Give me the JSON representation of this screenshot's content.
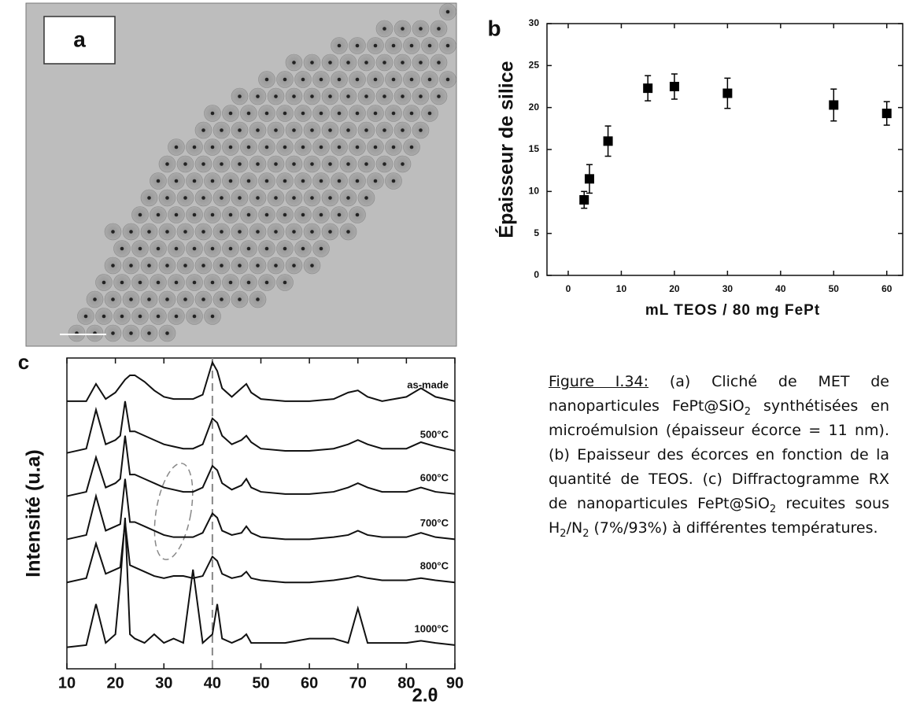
{
  "panel_a": {
    "label": "a"
  },
  "chart_data": [
    {
      "type": "scatter",
      "panel_label": "b",
      "xlabel": "mL TEOS / 80 mg FePt",
      "ylabel": "Épaisseur de silice",
      "x": [
        3,
        4,
        7.5,
        15,
        20,
        30,
        50,
        60
      ],
      "values": [
        9,
        11.5,
        16,
        22.3,
        22.5,
        21.7,
        20.3,
        19.3
      ],
      "errors": [
        1,
        1.7,
        1.8,
        1.5,
        1.5,
        1.8,
        1.9,
        1.4
      ],
      "color": "#000000",
      "xlim": [
        -4,
        63
      ],
      "ylim": [
        0,
        30
      ],
      "xticks": [
        0,
        10,
        20,
        30,
        40,
        50,
        60
      ],
      "yticks": [
        0,
        5,
        10,
        15,
        20,
        25,
        30
      ]
    },
    {
      "type": "line",
      "panel_label": "c",
      "xlabel": "2.θ",
      "ylabel": "Intensité (u.a)",
      "x": [
        10,
        14,
        16,
        18,
        20,
        21,
        22,
        23,
        24,
        26,
        28,
        30,
        32,
        34,
        36,
        38,
        40,
        41,
        42,
        44,
        46,
        47,
        48,
        50,
        55,
        60,
        65,
        68,
        70,
        72,
        75,
        80,
        83,
        86,
        90
      ],
      "series": [
        {
          "name": "as-made",
          "color": "#111111",
          "values": [
            62,
            62,
            66,
            62.5,
            64,
            65.5,
            67,
            68,
            68,
            66.5,
            64.5,
            63,
            62.5,
            62.5,
            62.5,
            63.5,
            71,
            69,
            65,
            63,
            65,
            66,
            64,
            62.5,
            62,
            62,
            62.5,
            64,
            64.5,
            63,
            62,
            63,
            65,
            63,
            62
          ]
        },
        {
          "name": "500°C",
          "color": "#111111",
          "values": [
            50,
            51,
            60,
            52,
            53,
            54,
            62,
            55,
            55,
            54,
            53,
            52,
            51.5,
            51,
            51,
            52,
            58,
            57,
            54,
            52,
            53,
            54,
            52.5,
            51,
            50.5,
            50.5,
            51,
            52,
            53,
            52,
            51,
            51,
            52.5,
            51.5,
            50.5
          ]
        },
        {
          "name": "600°C",
          "color": "#111111",
          "values": [
            40,
            41,
            49,
            42,
            43,
            44,
            54,
            45,
            45,
            44,
            43,
            42,
            41.5,
            41,
            41,
            42,
            47,
            46,
            43,
            41.5,
            42.5,
            44,
            42,
            41,
            40.5,
            40.5,
            41,
            42,
            43,
            42,
            41,
            41,
            42,
            41,
            40.5
          ]
        },
        {
          "name": "700°C",
          "color": "#111111",
          "values": [
            30,
            31,
            40,
            32,
            33,
            33.5,
            44,
            34,
            34,
            33,
            32,
            31,
            30.5,
            30.5,
            30.5,
            31.5,
            36,
            35,
            32,
            31,
            31.5,
            33,
            31.5,
            30.5,
            30,
            30,
            30.5,
            31,
            32,
            31,
            30.5,
            30.5,
            31.5,
            30.5,
            30
          ]
        },
        {
          "name": "800°C",
          "color": "#111111",
          "values": [
            20,
            21,
            29,
            22,
            23,
            23.5,
            34,
            24,
            23.5,
            22.5,
            21.5,
            21,
            21.5,
            21.5,
            21,
            21.5,
            26,
            25,
            22,
            21,
            21.5,
            22.5,
            21,
            20.5,
            20,
            20,
            20.5,
            21,
            21.5,
            21,
            20.5,
            20.5,
            21,
            20.5,
            20
          ]
        },
        {
          "name": "1000°C",
          "color": "#111111",
          "values": [
            5,
            5.5,
            15,
            6,
            8,
            20,
            35,
            8,
            7,
            6,
            8,
            6,
            7,
            6,
            23,
            6,
            8,
            15,
            7,
            6,
            7,
            8,
            6,
            6,
            6,
            7,
            7,
            6,
            14,
            6,
            6,
            6,
            6.5,
            6,
            5.5
          ]
        }
      ],
      "reference_x": 40,
      "xlim": [
        10,
        90
      ],
      "ylim": [
        0,
        72
      ],
      "xticks": [
        10,
        20,
        30,
        40,
        50,
        60,
        70,
        80,
        90
      ]
    }
  ],
  "caption": {
    "label": "Figure I.34:",
    "parts": [
      " (a) Cliché de MET de nanoparticules FePt@SiO",
      "2",
      " synthétisées en microémulsion (épaisseur écorce = 11 nm). (b) Epaisseur des écorces en fonction de la quantité de TEOS. (c) Diffractogramme RX de nanoparticules FePt@SiO",
      "2",
      " recuites sous H",
      "2",
      "/N",
      "2",
      " (7%/93%) à différentes températures."
    ]
  }
}
